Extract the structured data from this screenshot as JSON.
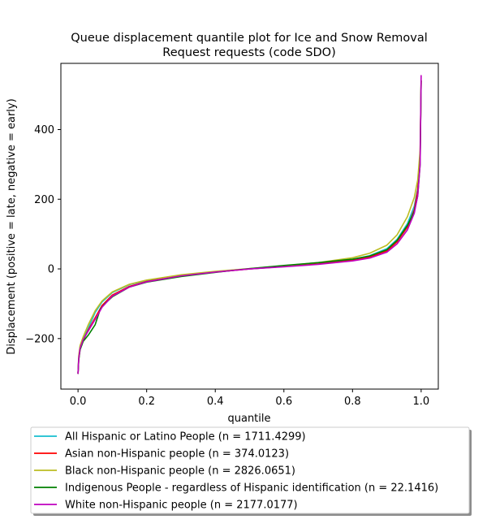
{
  "chart_data": {
    "type": "line",
    "title_line1": "Queue displacement quantile plot for Ice and Snow Removal",
    "title_line2": "Request  requests (code SDO)",
    "xlabel": "quantile",
    "ylabel": "Displacement (positive = late, negative = early)",
    "xlim": [
      -0.05,
      1.05
    ],
    "ylim": [
      -345,
      590
    ],
    "xticks": [
      0.0,
      0.2,
      0.4,
      0.6,
      0.8,
      1.0
    ],
    "xtick_labels": [
      "0.0",
      "0.2",
      "0.4",
      "0.6",
      "0.8",
      "1.0"
    ],
    "yticks": [
      -200,
      0,
      200,
      400
    ],
    "ytick_labels": [
      "−200",
      "0",
      "200",
      "400"
    ],
    "grid": false,
    "legend_position": "below-plot",
    "series": [
      {
        "name": "All Hispanic or Latino People (n = 1711.4299)",
        "color": "#17becf",
        "points": [
          [
            0.0,
            -300
          ],
          [
            0.002,
            -255
          ],
          [
            0.006,
            -225
          ],
          [
            0.015,
            -200
          ],
          [
            0.03,
            -170
          ],
          [
            0.05,
            -125
          ],
          [
            0.07,
            -95
          ],
          [
            0.1,
            -68
          ],
          [
            0.15,
            -45
          ],
          [
            0.2,
            -33
          ],
          [
            0.3,
            -18
          ],
          [
            0.4,
            -8
          ],
          [
            0.5,
            0
          ],
          [
            0.6,
            7
          ],
          [
            0.7,
            15
          ],
          [
            0.8,
            27
          ],
          [
            0.85,
            38
          ],
          [
            0.9,
            58
          ],
          [
            0.93,
            85
          ],
          [
            0.96,
            130
          ],
          [
            0.98,
            180
          ],
          [
            0.99,
            230
          ],
          [
            0.997,
            320
          ],
          [
            1.0,
            540
          ]
        ]
      },
      {
        "name": "Asian non-Hispanic people (n = 374.0123)",
        "color": "#ff0000",
        "points": [
          [
            0.0,
            -300
          ],
          [
            0.002,
            -260
          ],
          [
            0.006,
            -230
          ],
          [
            0.015,
            -205
          ],
          [
            0.03,
            -175
          ],
          [
            0.05,
            -140
          ],
          [
            0.07,
            -105
          ],
          [
            0.1,
            -75
          ],
          [
            0.15,
            -50
          ],
          [
            0.2,
            -36
          ],
          [
            0.3,
            -20
          ],
          [
            0.4,
            -9
          ],
          [
            0.5,
            0
          ],
          [
            0.6,
            7
          ],
          [
            0.7,
            14
          ],
          [
            0.8,
            25
          ],
          [
            0.85,
            34
          ],
          [
            0.9,
            52
          ],
          [
            0.93,
            78
          ],
          [
            0.96,
            120
          ],
          [
            0.98,
            170
          ],
          [
            0.99,
            225
          ],
          [
            0.997,
            320
          ],
          [
            1.0,
            540
          ]
        ]
      },
      {
        "name": "Black non-Hispanic people (n = 2826.0651)",
        "color": "#bcbd22",
        "points": [
          [
            0.0,
            -300
          ],
          [
            0.002,
            -250
          ],
          [
            0.006,
            -220
          ],
          [
            0.015,
            -195
          ],
          [
            0.03,
            -160
          ],
          [
            0.05,
            -120
          ],
          [
            0.07,
            -92
          ],
          [
            0.1,
            -66
          ],
          [
            0.15,
            -44
          ],
          [
            0.2,
            -32
          ],
          [
            0.3,
            -17
          ],
          [
            0.4,
            -7
          ],
          [
            0.5,
            1
          ],
          [
            0.6,
            9
          ],
          [
            0.7,
            18
          ],
          [
            0.8,
            32
          ],
          [
            0.85,
            45
          ],
          [
            0.9,
            68
          ],
          [
            0.93,
            98
          ],
          [
            0.96,
            150
          ],
          [
            0.98,
            205
          ],
          [
            0.99,
            255
          ],
          [
            0.997,
            340
          ],
          [
            1.0,
            540
          ]
        ]
      },
      {
        "name": "Indigenous People - regardless of Hispanic identification (n = 22.1416)",
        "color": "#008000",
        "points": [
          [
            0.0,
            -300
          ],
          [
            0.002,
            -262
          ],
          [
            0.006,
            -232
          ],
          [
            0.015,
            -208
          ],
          [
            0.03,
            -190
          ],
          [
            0.05,
            -160
          ],
          [
            0.065,
            -115
          ],
          [
            0.08,
            -98
          ],
          [
            0.1,
            -80
          ],
          [
            0.15,
            -52
          ],
          [
            0.2,
            -38
          ],
          [
            0.3,
            -22
          ],
          [
            0.4,
            -10
          ],
          [
            0.5,
            1
          ],
          [
            0.6,
            10
          ],
          [
            0.7,
            18
          ],
          [
            0.8,
            28
          ],
          [
            0.85,
            37
          ],
          [
            0.9,
            55
          ],
          [
            0.93,
            82
          ],
          [
            0.96,
            125
          ],
          [
            0.98,
            165
          ],
          [
            0.99,
            210
          ],
          [
            0.997,
            300
          ],
          [
            1.0,
            540
          ]
        ]
      },
      {
        "name": "White non-Hispanic people (n = 2177.0177)",
        "color": "#bf00bf",
        "points": [
          [
            0.0,
            -300
          ],
          [
            0.002,
            -258
          ],
          [
            0.006,
            -228
          ],
          [
            0.015,
            -203
          ],
          [
            0.03,
            -178
          ],
          [
            0.05,
            -145
          ],
          [
            0.07,
            -110
          ],
          [
            0.1,
            -78
          ],
          [
            0.15,
            -52
          ],
          [
            0.2,
            -37
          ],
          [
            0.3,
            -20
          ],
          [
            0.4,
            -9
          ],
          [
            0.5,
            0
          ],
          [
            0.6,
            6
          ],
          [
            0.7,
            13
          ],
          [
            0.8,
            23
          ],
          [
            0.85,
            31
          ],
          [
            0.9,
            48
          ],
          [
            0.93,
            72
          ],
          [
            0.96,
            112
          ],
          [
            0.98,
            160
          ],
          [
            0.99,
            210
          ],
          [
            0.997,
            300
          ],
          [
            1.0,
            555
          ]
        ]
      }
    ]
  }
}
